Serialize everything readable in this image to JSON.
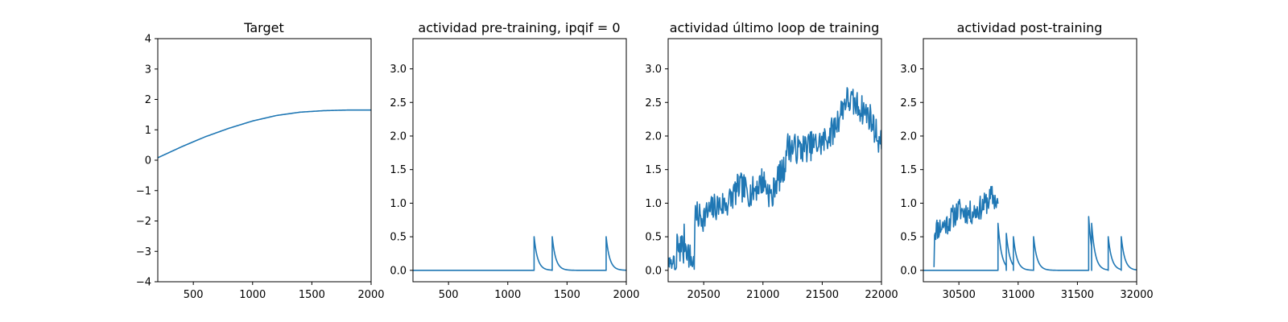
{
  "colors": {
    "series": "#1f77b4",
    "axes": "#000000",
    "background": "#ffffff"
  },
  "chart_data": [
    {
      "type": "line",
      "title": "Target",
      "xlabel": "",
      "ylabel": "",
      "xlim": [
        200,
        2000
      ],
      "ylim": [
        -4,
        4
      ],
      "xticks": [
        500,
        1000,
        1500,
        2000
      ],
      "yticks": [
        -4,
        -3,
        -2,
        -1,
        0,
        1,
        2,
        3,
        4
      ],
      "grid": false,
      "series": [
        {
          "kind": "smooth",
          "x": [
            200,
            400,
            600,
            800,
            1000,
            1200,
            1400,
            1600,
            1800,
            2000
          ],
          "y": [
            0.08,
            0.44,
            0.77,
            1.05,
            1.29,
            1.47,
            1.58,
            1.63,
            1.65,
            1.65
          ]
        }
      ]
    },
    {
      "type": "line",
      "title": "actividad pre-training, ipqif = 0",
      "xlabel": "",
      "ylabel": "",
      "xlim": [
        200,
        2000
      ],
      "ylim": [
        -0.17,
        3.45
      ],
      "xticks": [
        500,
        1000,
        1500,
        2000
      ],
      "yticks": [
        0.0,
        0.5,
        1.0,
        1.5,
        2.0,
        2.5,
        3.0
      ],
      "tick_format": "one_decimal",
      "grid": false,
      "series": [
        {
          "kind": "spikes",
          "baseline": 0.0,
          "tau": 30,
          "spikes": [
            [
              1222,
              0.5
            ],
            [
              1375,
              0.5
            ],
            [
              1830,
              0.5
            ]
          ]
        }
      ]
    },
    {
      "type": "line",
      "title": "actividad último loop de training",
      "xlabel": "",
      "ylabel": "",
      "xlim": [
        20200,
        22000
      ],
      "ylim": [
        -0.17,
        3.45
      ],
      "xticks": [
        20500,
        21000,
        21500,
        22000
      ],
      "yticks": [
        0.0,
        0.5,
        1.0,
        1.5,
        2.0,
        2.5,
        3.0
      ],
      "tick_format": "one_decimal",
      "grid": false,
      "series": [
        {
          "kind": "noisy",
          "seed": 7,
          "amp": 0.22,
          "step": 5,
          "start": 20200,
          "end": 22000,
          "x": [
            20200,
            20270,
            20271,
            20300,
            20301,
            20330,
            20331,
            20380,
            20420,
            20421,
            20500,
            20600,
            20700,
            20800,
            20900,
            21000,
            21080,
            21100,
            21180,
            21200,
            21300,
            21400,
            21500,
            21600,
            21700,
            21800,
            21900,
            22000
          ],
          "y": [
            0.0,
            0.0,
            0.45,
            0.2,
            0.55,
            0.25,
            0.5,
            0.2,
            0.1,
            0.8,
            0.8,
            0.95,
            1.0,
            1.25,
            1.15,
            1.35,
            1.05,
            1.3,
            1.5,
            1.85,
            1.8,
            1.85,
            1.9,
            2.1,
            2.55,
            2.45,
            2.3,
            1.85
          ]
        }
      ]
    },
    {
      "type": "line",
      "title": "actividad post-training",
      "xlabel": "",
      "ylabel": "",
      "xlim": [
        30200,
        32000
      ],
      "ylim": [
        -0.17,
        3.45
      ],
      "xticks": [
        30500,
        31000,
        31500,
        32000
      ],
      "yticks": [
        0.0,
        0.5,
        1.0,
        1.5,
        2.0,
        2.5,
        3.0
      ],
      "tick_format": "one_decimal",
      "grid": false,
      "series": [
        {
          "kind": "noisy",
          "seed": 11,
          "amp": 0.18,
          "step": 5,
          "start": 30290,
          "end": 30830,
          "x": [
            30290,
            30291,
            30400,
            30500,
            30600,
            30700,
            30780,
            30830
          ],
          "y": [
            0.0,
            0.6,
            0.7,
            0.9,
            0.85,
            0.95,
            1.1,
            1.0
          ]
        },
        {
          "kind": "spikes",
          "baseline": 0.0,
          "tau": 30,
          "spikes": [
            [
              30830,
              0.7
            ],
            [
              30900,
              0.55
            ],
            [
              30960,
              0.5
            ],
            [
              31130,
              0.5
            ],
            [
              31595,
              0.8
            ],
            [
              31620,
              0.7
            ],
            [
              31760,
              0.5
            ],
            [
              31870,
              0.5
            ]
          ]
        }
      ]
    }
  ]
}
